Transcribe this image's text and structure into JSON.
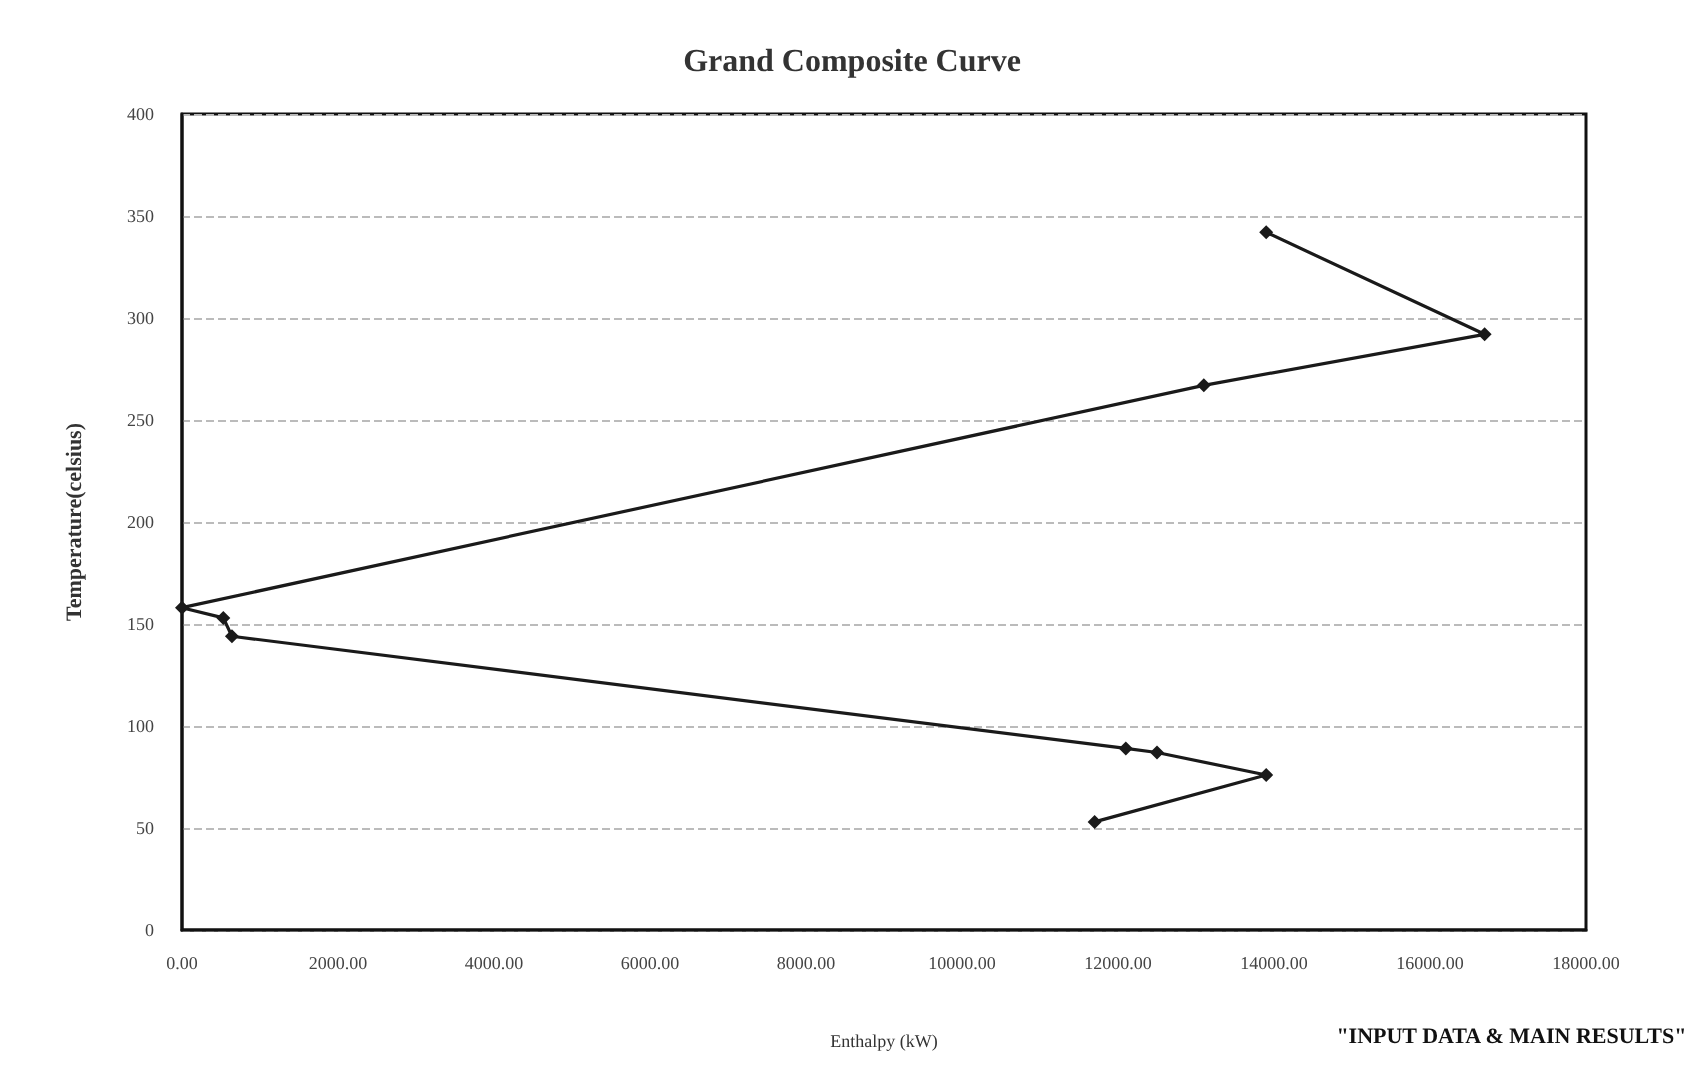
{
  "chart_data": {
    "type": "line",
    "title": "Grand Composite Curve",
    "xlabel": "Enthalpy (kW)",
    "ylabel": "Temperature(celsius)",
    "annotations": [
      "\"INPUT DATA & MAIN RESULTS\""
    ],
    "x": [
      13900,
      16700,
      13100,
      0,
      530,
      640,
      12100,
      12500,
      13900,
      11700
    ],
    "series": [
      {
        "color": "#1a1a1a",
        "values": [
          342,
          292,
          267,
          158,
          153,
          144,
          89,
          87,
          76,
          53
        ]
      }
    ],
    "xlim": [
      0,
      18000
    ],
    "xticks": [
      {
        "value": 0,
        "label": "0.00"
      },
      {
        "value": 2000,
        "label": "2000.00"
      },
      {
        "value": 4000,
        "label": "4000.00"
      },
      {
        "value": 6000,
        "label": "6000.00"
      },
      {
        "value": 8000,
        "label": "8000.00"
      },
      {
        "value": 10000,
        "label": "10000.00"
      },
      {
        "value": 12000,
        "label": "12000.00"
      },
      {
        "value": 14000,
        "label": "14000.00"
      },
      {
        "value": 16000,
        "label": "16000.00"
      },
      {
        "value": 18000,
        "label": "18000.00"
      }
    ],
    "ylim": [
      0,
      400
    ],
    "yticks": [
      0,
      50,
      100,
      150,
      200,
      250,
      300,
      350,
      400
    ],
    "grid": "y",
    "marker": "diamond",
    "line_style": "solid"
  }
}
